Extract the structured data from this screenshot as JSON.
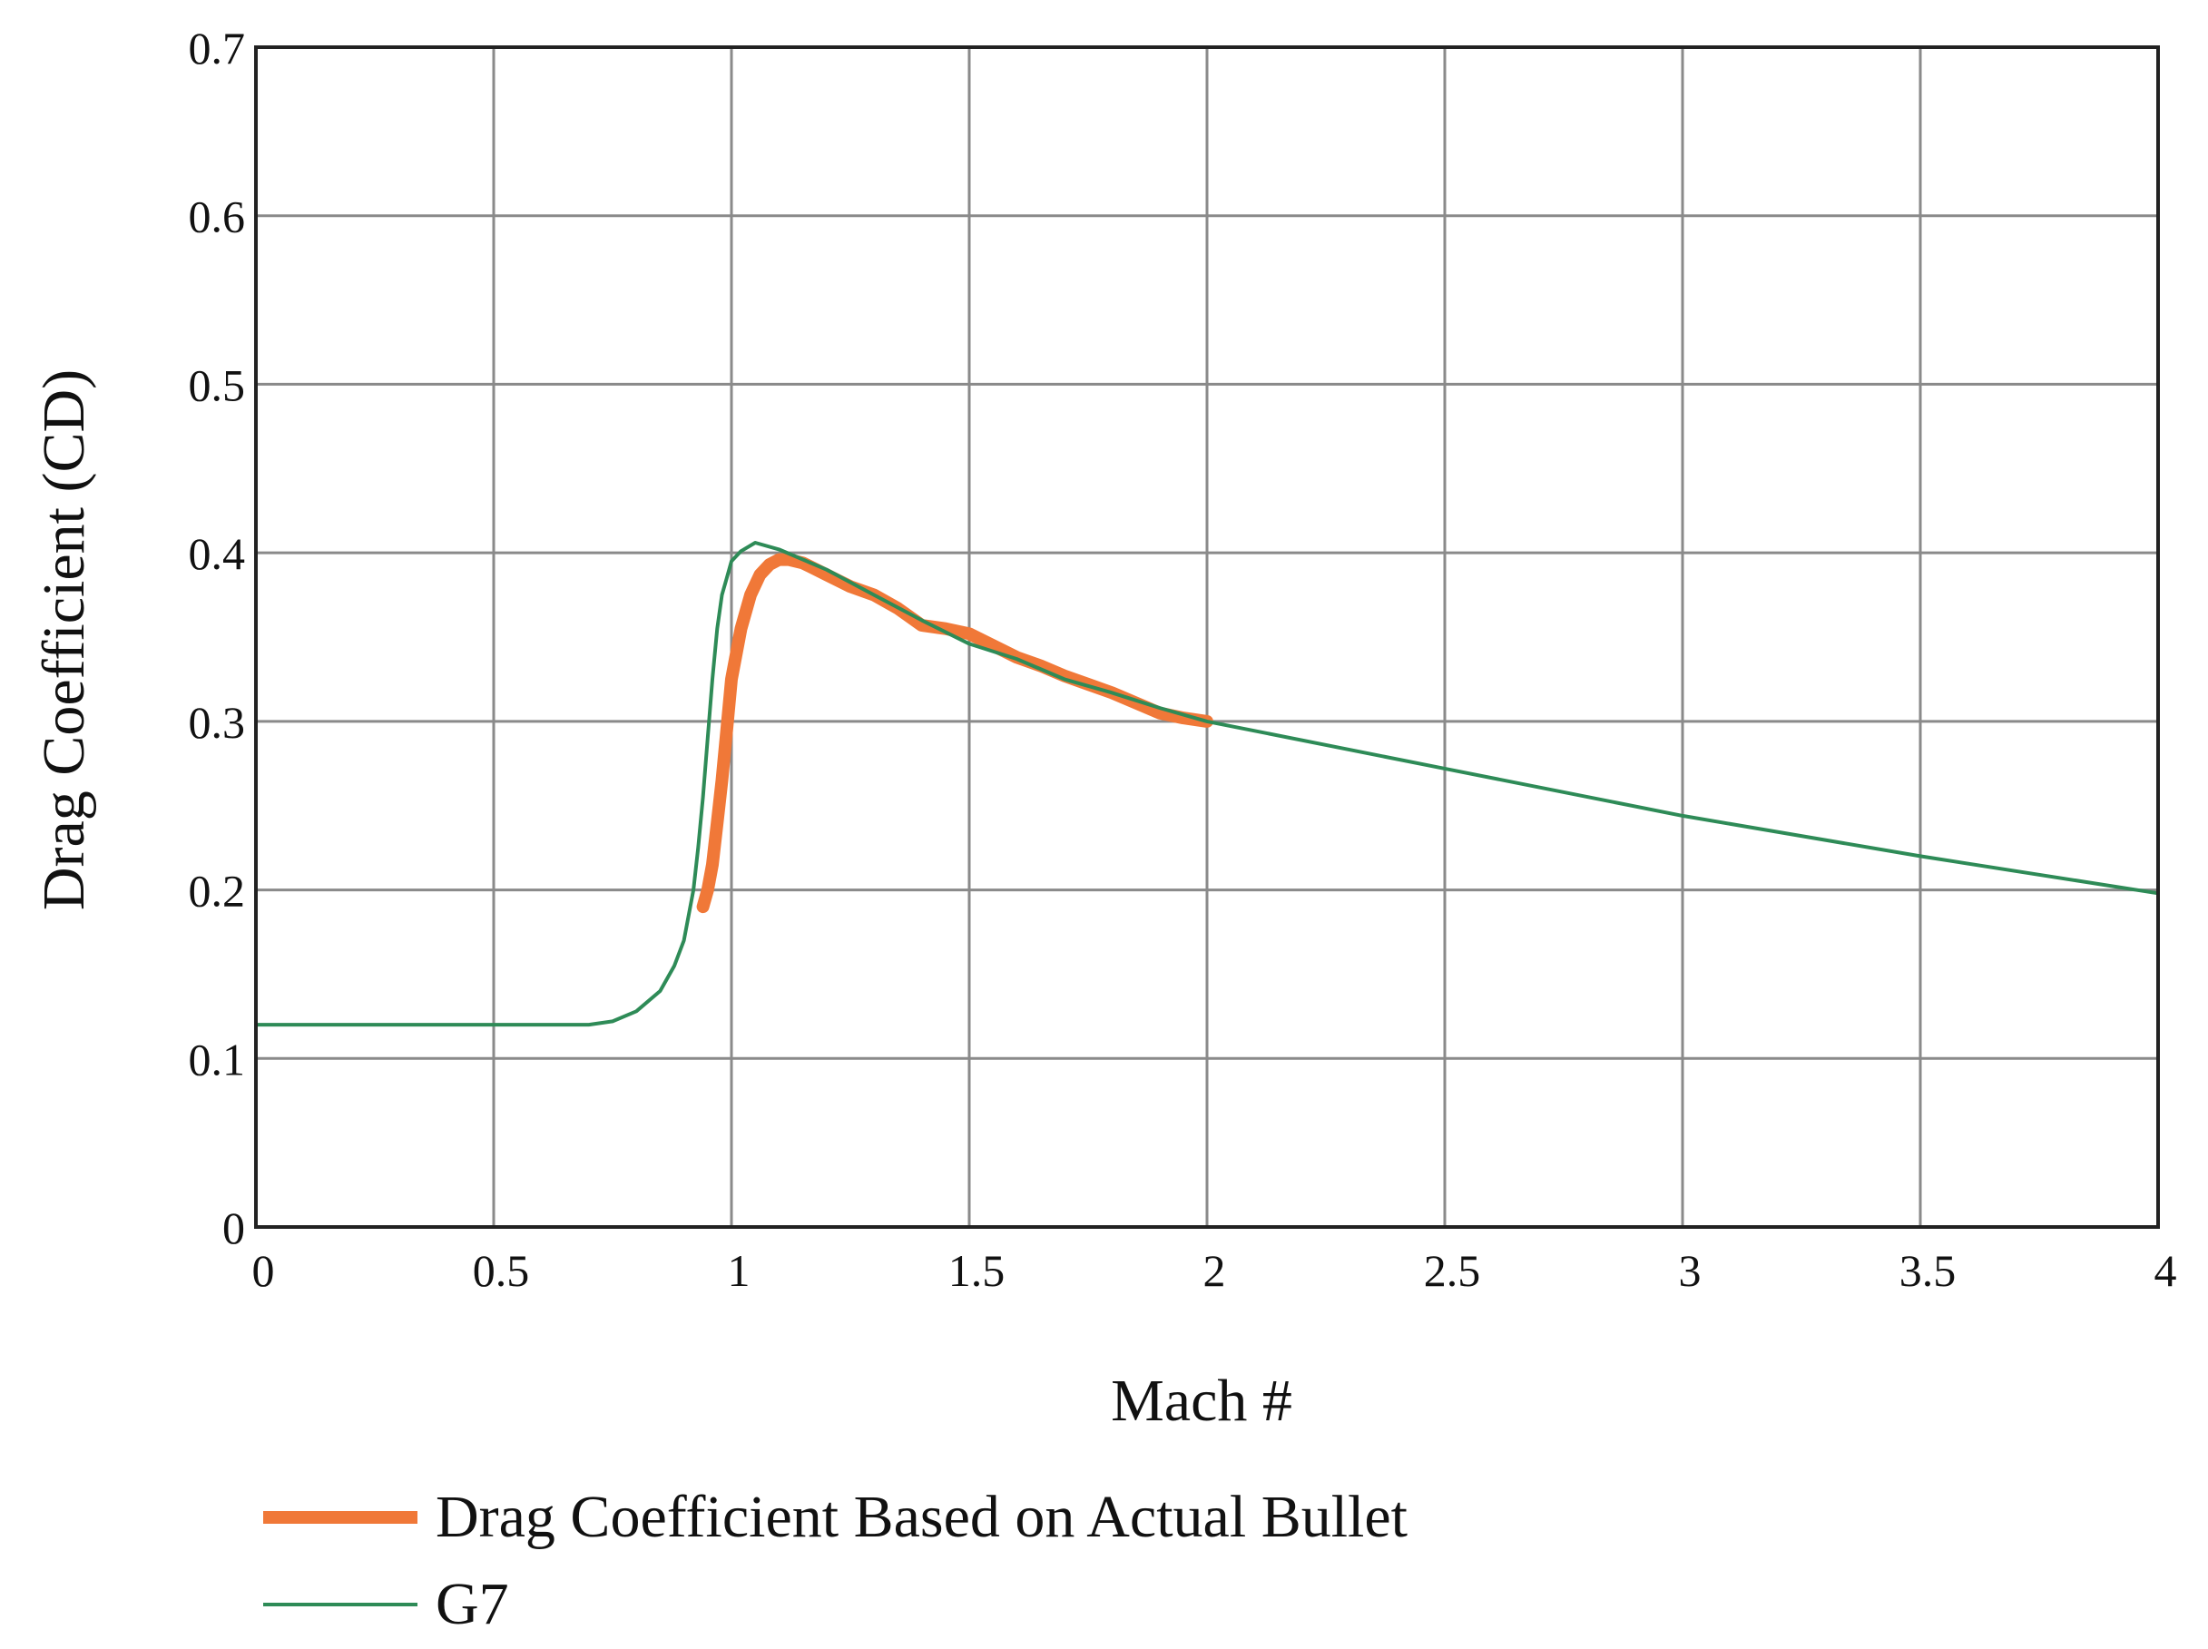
{
  "chart_data": {
    "type": "line",
    "title": "",
    "xlabel": "Mach #",
    "ylabel": "Drag Coefficient (CD)",
    "xlim": [
      0,
      4
    ],
    "ylim": [
      0,
      0.7
    ],
    "x_ticks": [
      0,
      0.5,
      1,
      1.5,
      2,
      2.5,
      3,
      3.5,
      4
    ],
    "x_tick_labels": [
      "0",
      "0.5",
      "1",
      "1.5",
      "2",
      "2.5",
      "3",
      "3.5",
      "4"
    ],
    "y_ticks": [
      0,
      0.1,
      0.2,
      0.3,
      0.4,
      0.5,
      0.6,
      0.7
    ],
    "y_tick_labels": [
      "0",
      "0.1",
      "0.2",
      "0.3",
      "0.4",
      "0.5",
      "0.6",
      "0.7"
    ],
    "grid": true,
    "legend_position": "bottom-left",
    "series": [
      {
        "name": "Drag Coefficient Based on Actual Bullet",
        "color": "#f07838",
        "x": [
          0.94,
          0.95,
          0.96,
          0.97,
          0.98,
          0.99,
          1.0,
          1.02,
          1.04,
          1.06,
          1.08,
          1.1,
          1.12,
          1.15,
          1.2,
          1.25,
          1.3,
          1.35,
          1.4,
          1.45,
          1.5,
          1.55,
          1.6,
          1.65,
          1.7,
          1.75,
          1.8,
          1.85,
          1.9,
          1.95,
          2.0
        ],
        "y": [
          0.19,
          0.2,
          0.215,
          0.24,
          0.265,
          0.295,
          0.325,
          0.355,
          0.375,
          0.387,
          0.393,
          0.396,
          0.396,
          0.394,
          0.387,
          0.38,
          0.375,
          0.367,
          0.357,
          0.355,
          0.352,
          0.345,
          0.338,
          0.333,
          0.327,
          0.322,
          0.317,
          0.311,
          0.305,
          0.302,
          0.3
        ]
      },
      {
        "name": "G7",
        "color": "#2e8b57",
        "x": [
          0.0,
          0.5,
          0.7,
          0.75,
          0.8,
          0.85,
          0.88,
          0.9,
          0.92,
          0.93,
          0.94,
          0.95,
          0.96,
          0.97,
          0.98,
          0.99,
          1.0,
          1.02,
          1.05,
          1.1,
          1.2,
          1.3,
          1.4,
          1.5,
          1.6,
          1.7,
          1.8,
          1.9,
          2.0,
          2.5,
          3.0,
          3.5,
          4.0
        ],
        "y": [
          0.12,
          0.12,
          0.12,
          0.122,
          0.128,
          0.14,
          0.155,
          0.17,
          0.2,
          0.225,
          0.255,
          0.29,
          0.325,
          0.355,
          0.375,
          0.385,
          0.395,
          0.401,
          0.406,
          0.402,
          0.39,
          0.375,
          0.36,
          0.346,
          0.337,
          0.325,
          0.317,
          0.308,
          0.3,
          0.272,
          0.244,
          0.22,
          0.198
        ]
      }
    ]
  }
}
